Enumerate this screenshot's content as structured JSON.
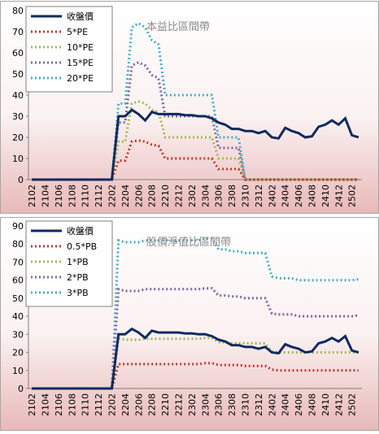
{
  "chart_data": [
    {
      "type": "line",
      "annotation": "本益比區間帶",
      "legend": "upper left",
      "grid": false,
      "categories": [
        "2102",
        null,
        "2104",
        null,
        "2106",
        null,
        "2108",
        null,
        "2110",
        null,
        "2112",
        null,
        "2202",
        null,
        "2204",
        null,
        "2206",
        null,
        "2208",
        null,
        "2210",
        null,
        "2212",
        null,
        "2302",
        null,
        "2304",
        null,
        "2306",
        null,
        "2308",
        null,
        "2310",
        null,
        "2312",
        null,
        "2402",
        null,
        "2404",
        null,
        "2406",
        null,
        "2408",
        null,
        "2410",
        null,
        "2412",
        null,
        "2502",
        null
      ],
      "ylim": [
        0,
        80
      ],
      "yticks": [
        0,
        10,
        20,
        30,
        40,
        50,
        60,
        70,
        80
      ],
      "series": [
        {
          "name": "收盤價",
          "color": "#0e2a5e",
          "values": [
            0,
            0,
            0,
            0,
            0,
            0,
            0,
            0,
            0,
            0,
            0,
            0,
            0,
            30,
            30,
            33,
            31,
            28,
            32,
            31,
            31,
            31,
            31,
            30.5,
            30.5,
            30,
            30,
            29,
            27,
            26,
            24,
            24,
            23,
            23,
            22,
            23,
            20,
            19.5,
            24.5,
            23,
            22,
            20,
            20.5,
            25,
            26,
            28,
            26,
            29,
            21,
            20
          ]
        },
        {
          "name": "5*PE",
          "color": "#c0392b",
          "values": [
            0,
            0,
            0,
            0,
            0,
            0,
            0,
            0,
            0,
            0,
            0,
            0,
            0,
            9,
            9,
            18,
            18.5,
            18,
            16.5,
            16,
            10,
            10,
            10,
            10,
            10,
            10,
            10,
            10,
            5,
            5,
            5,
            5,
            0,
            0,
            0,
            0,
            0,
            0,
            0,
            0,
            0,
            0,
            0,
            0,
            0,
            0,
            0,
            0,
            0,
            0
          ]
        },
        {
          "name": "10*PE",
          "color": "#9bbb59",
          "values": [
            0,
            0,
            0,
            0,
            0,
            0,
            0,
            0,
            0,
            0,
            0,
            0,
            0,
            18,
            18,
            36,
            37,
            36,
            33,
            32,
            20,
            20,
            20,
            20,
            20,
            20,
            20,
            20,
            10,
            10,
            10,
            10,
            0,
            0,
            0,
            0,
            0,
            0,
            0,
            0,
            0,
            0,
            0,
            0,
            0,
            0,
            0,
            0,
            0,
            0
          ]
        },
        {
          "name": "15*PE",
          "color": "#8064a2",
          "values": [
            0,
            0,
            0,
            0,
            0,
            0,
            0,
            0,
            0,
            0,
            0,
            0,
            0,
            27,
            27,
            54,
            55.5,
            54,
            49.5,
            48,
            30,
            30,
            30,
            30,
            30,
            30,
            30,
            30,
            15,
            15,
            15,
            15,
            0,
            0,
            0,
            0,
            0,
            0,
            0,
            0,
            0,
            0,
            0,
            0,
            0,
            0,
            0,
            0,
            0,
            0
          ]
        },
        {
          "name": "20*PE",
          "color": "#4bacc6",
          "values": [
            0,
            0,
            0,
            0,
            0,
            0,
            0,
            0,
            0,
            0,
            0,
            0,
            0,
            36,
            36,
            72,
            74,
            72,
            66,
            64,
            40,
            40,
            40,
            40,
            40,
            40,
            40,
            40,
            20,
            20,
            20,
            20,
            0,
            0,
            0,
            0,
            0,
            0,
            0,
            0,
            0,
            0,
            0,
            0,
            0,
            0,
            0,
            0,
            0,
            0
          ]
        }
      ]
    },
    {
      "type": "line",
      "annotation": "股價淨值比區間帶",
      "legend": "upper left",
      "grid": false,
      "categories": [
        "2102",
        null,
        "2104",
        null,
        "2106",
        null,
        "2108",
        null,
        "2110",
        null,
        "2112",
        null,
        "2202",
        null,
        "2204",
        null,
        "2206",
        null,
        "2208",
        null,
        "2210",
        null,
        "2212",
        null,
        "2302",
        null,
        "2304",
        null,
        "2306",
        null,
        "2308",
        null,
        "2310",
        null,
        "2312",
        null,
        "2402",
        null,
        "2404",
        null,
        "2406",
        null,
        "2408",
        null,
        "2410",
        null,
        "2412",
        null,
        "2502",
        null
      ],
      "ylim": [
        0,
        90
      ],
      "yticks": [
        0,
        10,
        20,
        30,
        40,
        50,
        60,
        70,
        80,
        90
      ],
      "series": [
        {
          "name": "收盤價",
          "color": "#0e2a5e",
          "values": [
            0,
            0,
            0,
            0,
            0,
            0,
            0,
            0,
            0,
            0,
            0,
            0,
            0,
            30,
            30,
            33,
            31,
            28,
            32,
            31,
            31,
            31,
            31,
            30.5,
            30.5,
            30,
            30,
            29,
            27,
            26,
            24,
            24,
            23,
            23,
            22,
            23,
            20,
            19.5,
            24.5,
            23,
            22,
            20,
            20.5,
            25,
            26,
            28,
            26,
            29,
            21,
            20
          ]
        },
        {
          "name": "0.5*PB",
          "color": "#c0392b",
          "values": [
            0,
            0,
            0,
            0,
            0,
            0,
            0,
            0,
            0,
            0,
            0,
            0,
            0,
            13.5,
            13.5,
            13.5,
            13.5,
            13.5,
            13.5,
            13.5,
            13.5,
            13.5,
            13.5,
            13.5,
            13.5,
            13.5,
            14,
            14,
            13,
            13,
            13,
            13,
            12.5,
            12.5,
            12.5,
            12.5,
            10.5,
            10,
            10,
            10,
            10,
            10,
            10,
            10,
            10,
            10,
            10,
            10,
            10,
            10
          ]
        },
        {
          "name": "1*PB",
          "color": "#9bbb59",
          "values": [
            0,
            0,
            0,
            0,
            0,
            0,
            0,
            0,
            0,
            0,
            0,
            0,
            0,
            27.5,
            27,
            27,
            27,
            27.5,
            27.5,
            27.5,
            27.5,
            27.5,
            27.5,
            27.5,
            27.5,
            27.5,
            28,
            28,
            25.5,
            25.5,
            25,
            25,
            25,
            25,
            25,
            25,
            20.5,
            20,
            20,
            20,
            20,
            20,
            20,
            20,
            20,
            20,
            20,
            20,
            20,
            20
          ]
        },
        {
          "name": "2*PB",
          "color": "#8064a2",
          "values": [
            0,
            0,
            0,
            0,
            0,
            0,
            0,
            0,
            0,
            0,
            0,
            0,
            0,
            55,
            54,
            54,
            54,
            55,
            55,
            55,
            55,
            55,
            55,
            55,
            55,
            55,
            55.5,
            55.5,
            51.5,
            51.5,
            51,
            51,
            50,
            50,
            50,
            50,
            41.5,
            41,
            41,
            41,
            40,
            40,
            40,
            40,
            40,
            40,
            40,
            40,
            40,
            40.5
          ]
        },
        {
          "name": "3*PB",
          "color": "#4bacc6",
          "values": [
            0,
            0,
            0,
            0,
            0,
            0,
            0,
            0,
            0,
            0,
            0,
            0,
            0,
            82,
            81,
            81,
            81,
            82,
            82,
            82,
            82,
            82,
            82,
            82,
            82,
            82,
            83,
            83,
            77,
            77,
            76,
            76,
            75,
            75,
            75,
            75,
            62,
            61,
            61,
            61,
            60,
            60,
            60,
            60,
            60,
            60,
            60,
            60,
            60,
            60.5
          ]
        }
      ]
    }
  ]
}
